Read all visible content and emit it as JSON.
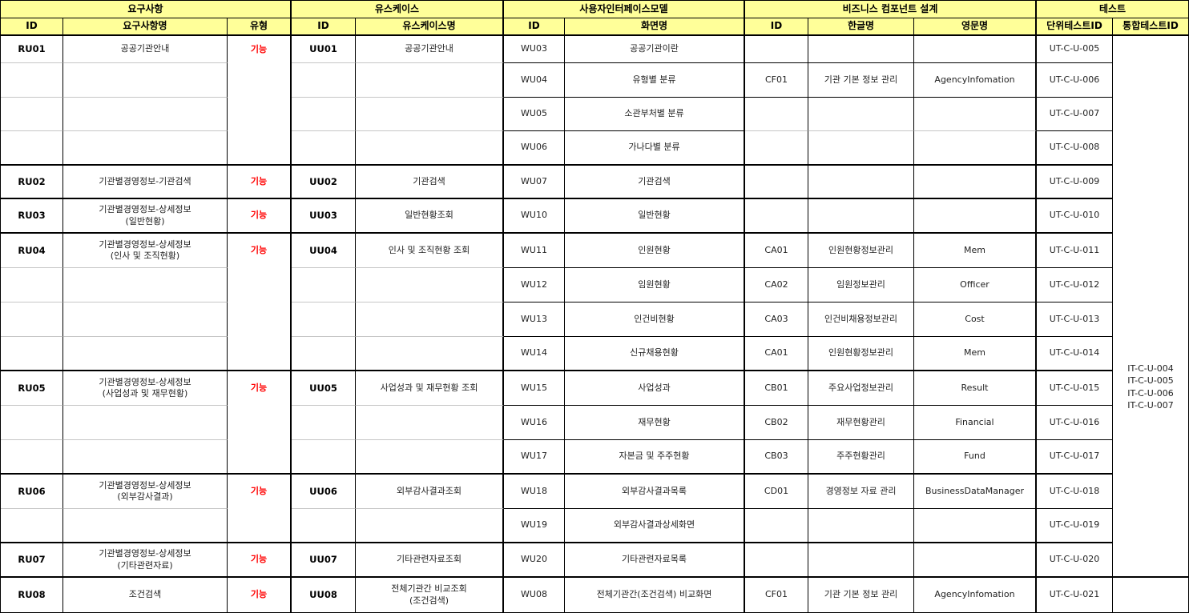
{
  "header": {
    "groups": [
      {
        "label": "요구사항"
      },
      {
        "label": "유스케이스"
      },
      {
        "label": "사용자인터페이스모델"
      },
      {
        "label": "비즈니스 컴포넌트 설계"
      },
      {
        "label": "테스트"
      }
    ],
    "columns": [
      {
        "label": "ID"
      },
      {
        "label": "요구사항명"
      },
      {
        "label": "유형"
      },
      {
        "label": "ID"
      },
      {
        "label": "유스케이스명"
      },
      {
        "label": "ID"
      },
      {
        "label": "화면명"
      },
      {
        "label": "ID"
      },
      {
        "label": "한글명"
      },
      {
        "label": "영문명"
      },
      {
        "label": "단위테스트ID"
      },
      {
        "label": "통합테스트ID"
      }
    ]
  },
  "requirements": [
    {
      "id": "RU01",
      "name": "공공기관안내",
      "type": "기능"
    },
    {
      "id": "RU02",
      "name": "기관별경영정보-기관검색",
      "type": "기능"
    },
    {
      "id": "RU03",
      "name": "기관별경영정보-상세정보\n(일반현황)",
      "type": "기능"
    },
    {
      "id": "RU04",
      "name": "기관별경영정보-상세정보\n(인사 및 조직현황)",
      "type": "기능"
    },
    {
      "id": "RU05",
      "name": "기관별경영정보-상세정보\n(사업성과 및 재무현황)",
      "type": "기능"
    },
    {
      "id": "RU06",
      "name": "기관별경영정보-상세정보\n(외부감사결과)",
      "type": "기능"
    },
    {
      "id": "RU07",
      "name": "기관별경영정보-상세정보\n(기타관련자료)",
      "type": "기능"
    },
    {
      "id": "RU08",
      "name": "조건검색",
      "type": "기능"
    }
  ],
  "usecases": [
    {
      "id": "UU01",
      "name": "공공기관안내"
    },
    {
      "id": "UU02",
      "name": "기관검색"
    },
    {
      "id": "UU03",
      "name": "일반현황조회"
    },
    {
      "id": "UU04",
      "name": "인사 및 조직현황 조회"
    },
    {
      "id": "UU05",
      "name": "사업성과 및 재무현황 조회"
    },
    {
      "id": "UU06",
      "name": "외부감사결과조회"
    },
    {
      "id": "UU07",
      "name": "기타관련자료조회"
    },
    {
      "id": "UU08",
      "name": "전체기관간 비교조회\n(조건검색)"
    }
  ],
  "rows": [
    {
      "wu_id": "WU03",
      "wu_name": "공공기관이란",
      "unit_test": "UT-C-U-005"
    },
    {
      "wu_id": "WU04",
      "wu_name": "유형별 분류",
      "biz_id": "CF01",
      "biz_kr": "기관 기본 정보 관리",
      "biz_en": "AgencyInfomation",
      "unit_test": "UT-C-U-006"
    },
    {
      "wu_id": "WU05",
      "wu_name": "소관부처별 분류",
      "unit_test": "UT-C-U-007"
    },
    {
      "wu_id": "WU06",
      "wu_name": "가나다별 분류",
      "unit_test": "UT-C-U-008"
    },
    {
      "wu_id": "WU07",
      "wu_name": "기관검색",
      "unit_test": "UT-C-U-009"
    },
    {
      "wu_id": "WU10",
      "wu_name": "일반현황",
      "unit_test": "UT-C-U-010"
    },
    {
      "wu_id": "WU11",
      "wu_name": "인원현황",
      "biz_id": "CA01",
      "biz_kr": "인원현황정보관리",
      "biz_en": "Mem",
      "unit_test": "UT-C-U-011"
    },
    {
      "wu_id": "WU12",
      "wu_name": "임원현황",
      "biz_id": "CA02",
      "biz_kr": "임원정보관리",
      "biz_en": "Officer",
      "unit_test": "UT-C-U-012"
    },
    {
      "wu_id": "WU13",
      "wu_name": "인건비현황",
      "biz_id": "CA03",
      "biz_kr": "인건비채용정보관리",
      "biz_en": "Cost",
      "unit_test": "UT-C-U-013"
    },
    {
      "wu_id": "WU14",
      "wu_name": "신규채용현황",
      "biz_id": "CA01",
      "biz_kr": "인원현황정보관리",
      "biz_en": "Mem",
      "unit_test": "UT-C-U-014"
    },
    {
      "wu_id": "WU15",
      "wu_name": "사업성과",
      "biz_id": "CB01",
      "biz_kr": "주요사업정보관리",
      "biz_en": "Result",
      "unit_test": "UT-C-U-015"
    },
    {
      "wu_id": "WU16",
      "wu_name": "재무현황",
      "biz_id": "CB02",
      "biz_kr": "재무현황관리",
      "biz_en": "Financial",
      "unit_test": "UT-C-U-016"
    },
    {
      "wu_id": "WU17",
      "wu_name": "자본금 및 주주현황",
      "biz_id": "CB03",
      "biz_kr": "주주현황관리",
      "biz_en": "Fund",
      "unit_test": "UT-C-U-017"
    },
    {
      "wu_id": "WU18",
      "wu_name": "외부감사결과목록",
      "biz_id": "CD01",
      "biz_kr": "경영정보 자료 관리",
      "biz_en": "BusinessDataManager",
      "unit_test": "UT-C-U-018"
    },
    {
      "wu_id": "WU19",
      "wu_name": "외부감사결과상세화면",
      "unit_test": "UT-C-U-019"
    },
    {
      "wu_id": "WU20",
      "wu_name": "기타관련자료목록",
      "unit_test": "UT-C-U-020"
    },
    {
      "wu_id": "WU08",
      "wu_name": "전체기관간(조건검색) 비교화면",
      "biz_id": "CF01",
      "biz_kr": "기관 기본 정보 관리",
      "biz_en": "AgencyInfomation",
      "unit_test": "UT-C-U-021"
    }
  ],
  "integration": {
    "text": "IT-C-U-004\nIT-C-U-005\nIT-C-U-006\nIT-C-U-007"
  },
  "colors": {
    "header_bg": "#ffff99",
    "type_red": "#ff0000",
    "grid_gray": "#c6c6c6",
    "border_black": "#000000"
  }
}
